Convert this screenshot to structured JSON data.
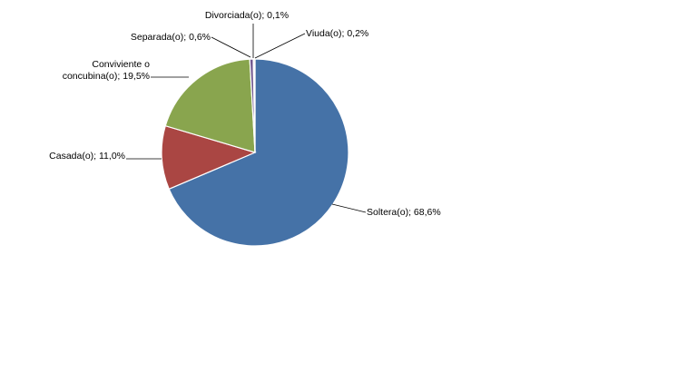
{
  "chart_data": {
    "type": "pie",
    "title": "",
    "legend": "none",
    "slices": [
      {
        "label": "Soltera(o)",
        "value": 68.6,
        "text": "Soltera(o); 68,6%",
        "color": "#4572a7"
      },
      {
        "label": "Casada(o)",
        "value": 11.0,
        "text": "Casada(o); 11,0%",
        "color": "#aa4643"
      },
      {
        "label": "Conviviente o concubina(o)",
        "value": 19.5,
        "text": [
          "Conviviente o",
          "concubina(o); 19,5%"
        ],
        "color": "#89a54e"
      },
      {
        "label": "Separada(o)",
        "value": 0.6,
        "text": "Separada(o); 0,6%",
        "color": "#71588f"
      },
      {
        "label": "Divorciada(o)",
        "value": 0.1,
        "text": "Divorciada(o); 0,1%",
        "color": "#4198af"
      },
      {
        "label": "Viuda(o)",
        "value": 0.2,
        "text": "Viuda(o); 0,2%",
        "color": "#db843d"
      }
    ]
  }
}
